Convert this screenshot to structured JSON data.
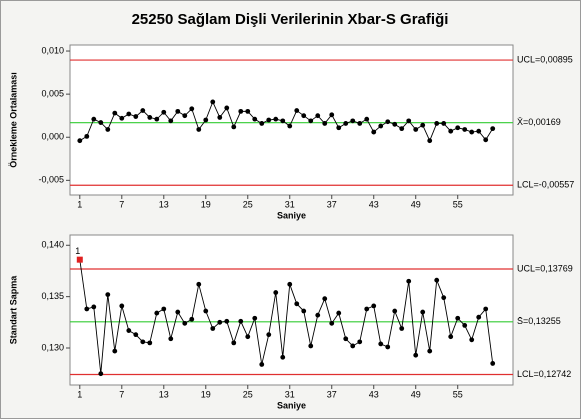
{
  "chart_data": [
    {
      "type": "line",
      "title": "25250 Sağlam Dişli Verilerinin Xbar-S Grafiği",
      "xlabel": "Saniye",
      "ylabel": "Örnekleme Ortalaması",
      "x": [
        1,
        2,
        3,
        4,
        5,
        6,
        7,
        8,
        9,
        10,
        11,
        12,
        13,
        14,
        15,
        16,
        17,
        18,
        19,
        20,
        21,
        22,
        23,
        24,
        25,
        26,
        27,
        28,
        29,
        30,
        31,
        32,
        33,
        34,
        35,
        36,
        37,
        38,
        39,
        40,
        41,
        42,
        43,
        44,
        45,
        46,
        47,
        48,
        49,
        50,
        51,
        52,
        53,
        54,
        55,
        56,
        57,
        58,
        59,
        60
      ],
      "values": [
        -0.0004,
        0.0001,
        0.0021,
        0.0017,
        0.0009,
        0.0028,
        0.0022,
        0.0027,
        0.0024,
        0.0031,
        0.0023,
        0.0021,
        0.0029,
        0.0019,
        0.003,
        0.0025,
        0.0033,
        0.0009,
        0.002,
        0.0041,
        0.0023,
        0.0034,
        0.0012,
        0.003,
        0.003,
        0.0021,
        0.0016,
        0.002,
        0.0021,
        0.0019,
        0.0013,
        0.0031,
        0.0025,
        0.0019,
        0.0025,
        0.0016,
        0.0026,
        0.0011,
        0.0016,
        0.0019,
        0.0016,
        0.0021,
        0.0006,
        0.0013,
        0.0018,
        0.0015,
        0.001,
        0.0019,
        0.0009,
        0.0014,
        -0.0004,
        0.0016,
        0.0016,
        0.0007,
        0.0011,
        0.0009,
        0.0006,
        0.0007,
        -0.0003,
        0.001
      ],
      "color": "#000000",
      "xlim": [
        -0.4,
        62.9
      ],
      "ylim": [
        -0.0067,
        0.0107
      ],
      "xticks": [
        1,
        7,
        13,
        19,
        25,
        31,
        37,
        43,
        49,
        55
      ],
      "yticks": [
        {
          "value": 0.01,
          "label": "0,010"
        },
        {
          "value": 0.005,
          "label": "0,005"
        },
        {
          "value": 0,
          "label": "0,000"
        },
        {
          "value": -0.005,
          "label": "-0,005"
        }
      ],
      "reference_lines": [
        {
          "value": 0.00895,
          "label": "UCL=0,00895",
          "color": "#e03030"
        },
        {
          "value": 0.00169,
          "label": "X̄=0,00169",
          "color": "#33cc33"
        },
        {
          "value": -0.00557,
          "label": "LCL=-0,00557",
          "color": "#e03030"
        }
      ],
      "flagged": []
    },
    {
      "type": "line",
      "xlabel": "Saniye",
      "ylabel": "Standart Sapma",
      "x": [
        1,
        2,
        3,
        4,
        5,
        6,
        7,
        8,
        9,
        10,
        11,
        12,
        13,
        14,
        15,
        16,
        17,
        18,
        19,
        20,
        21,
        22,
        23,
        24,
        25,
        26,
        27,
        28,
        29,
        30,
        31,
        32,
        33,
        34,
        35,
        36,
        37,
        38,
        39,
        40,
        41,
        42,
        43,
        44,
        45,
        46,
        47,
        48,
        49,
        50,
        51,
        52,
        53,
        54,
        55,
        56,
        57,
        58,
        59,
        60
      ],
      "values": [
        0.1386,
        0.1338,
        0.134,
        0.1275,
        0.1352,
        0.1297,
        0.1341,
        0.1317,
        0.1313,
        0.1306,
        0.1305,
        0.1334,
        0.1338,
        0.1309,
        0.1335,
        0.1324,
        0.1328,
        0.1362,
        0.1336,
        0.1319,
        0.1325,
        0.1326,
        0.1305,
        0.1326,
        0.1311,
        0.1329,
        0.1284,
        0.1313,
        0.1354,
        0.1291,
        0.1362,
        0.1343,
        0.1336,
        0.1302,
        0.1332,
        0.1348,
        0.1324,
        0.1334,
        0.1309,
        0.1302,
        0.1306,
        0.1338,
        0.1341,
        0.1304,
        0.1301,
        0.1336,
        0.1319,
        0.1365,
        0.1293,
        0.1335,
        0.1297,
        0.1366,
        0.1349,
        0.1311,
        0.1329,
        0.1322,
        0.1308,
        0.133,
        0.1338,
        0.1285
      ],
      "color": "#000000",
      "xlim": [
        -0.4,
        62.9
      ],
      "ylim": [
        0.1264,
        0.141
      ],
      "xticks": [
        1,
        7,
        13,
        19,
        25,
        31,
        37,
        43,
        49,
        55
      ],
      "yticks": [
        {
          "value": 0.14,
          "label": "0,140"
        },
        {
          "value": 0.135,
          "label": "0,135"
        },
        {
          "value": 0.13,
          "label": "0,130"
        }
      ],
      "reference_lines": [
        {
          "value": 0.13769,
          "label": "UCL=0,13769",
          "color": "#e03030"
        },
        {
          "value": 0.13255,
          "label": "S̄=0,13255",
          "color": "#33cc33"
        },
        {
          "value": 0.12742,
          "label": "LCL=0,12742",
          "color": "#e03030"
        }
      ],
      "flagged": [
        {
          "x": 1,
          "label": "1",
          "color": "#e02020"
        }
      ]
    }
  ]
}
